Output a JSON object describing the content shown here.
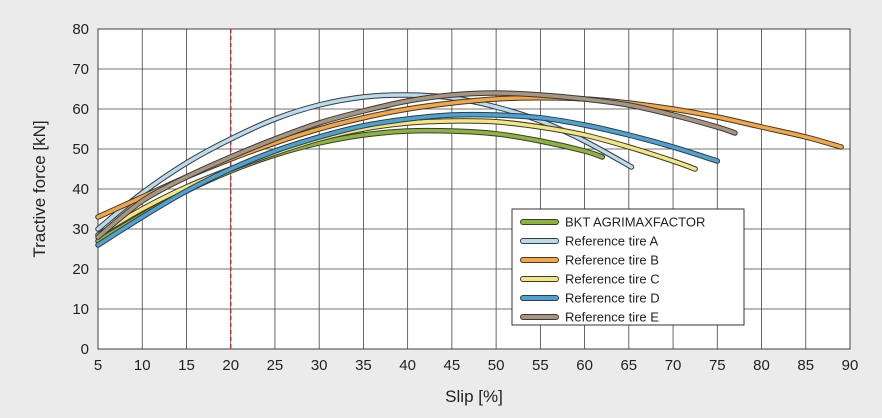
{
  "chart_data": {
    "type": "line",
    "title": "",
    "xlabel": "Slip [%]",
    "ylabel": "Tractive force [kN]",
    "xlim": [
      5,
      90
    ],
    "ylim": [
      0,
      80
    ],
    "xticks": [
      5,
      10,
      15,
      20,
      25,
      30,
      35,
      40,
      45,
      50,
      55,
      60,
      65,
      70,
      75,
      80,
      85,
      90
    ],
    "yticks": [
      0,
      10,
      20,
      30,
      40,
      50,
      60,
      70,
      80
    ],
    "grid": true,
    "legend_position": "bottom-right",
    "reference_line": {
      "x": 20,
      "color": "#d32f2f",
      "style": "dashed"
    },
    "series": [
      {
        "name": "BKT AGRIMAXFACTOR",
        "color": "#8cb43c",
        "x": [
          5,
          10,
          15,
          20,
          25,
          30,
          35,
          40,
          45,
          50,
          55,
          60,
          62
        ],
        "y": [
          27,
          33.5,
          39.5,
          44.5,
          48.5,
          51.5,
          53.5,
          54.5,
          54.5,
          53.8,
          52,
          49.5,
          48
        ]
      },
      {
        "name": "Reference tire A",
        "color": "#b8dcee",
        "x": [
          5,
          10,
          15,
          20,
          25,
          30,
          35,
          40,
          45,
          50,
          55,
          60,
          65.3
        ],
        "y": [
          30,
          39,
          46.5,
          52.5,
          57.5,
          61,
          63,
          63.5,
          62.8,
          60.5,
          57,
          52,
          45.5
        ]
      },
      {
        "name": "Reference tire B",
        "color": "#f4a640",
        "x": [
          5,
          10,
          15,
          20,
          25,
          30,
          35,
          40,
          45,
          50,
          55,
          60,
          65,
          70,
          75,
          80,
          85,
          89
        ],
        "y": [
          33,
          38,
          43,
          47.5,
          51.5,
          55,
          57.8,
          60,
          61.5,
          62.5,
          62.8,
          62.5,
          61.5,
          60,
          58,
          55.5,
          53,
          50.5
        ]
      },
      {
        "name": "Reference tire C",
        "color": "#f3e67a",
        "x": [
          5,
          10,
          15,
          20,
          25,
          30,
          35,
          40,
          45,
          50,
          55,
          60,
          65,
          70,
          72.5
        ],
        "y": [
          28.5,
          35,
          40.5,
          45,
          49,
          52.5,
          55,
          56.5,
          57,
          56.8,
          55.5,
          53.5,
          50.5,
          47,
          45
        ]
      },
      {
        "name": "Reference tire D",
        "color": "#4aa3d6",
        "x": [
          5,
          10,
          15,
          20,
          25,
          30,
          35,
          40,
          45,
          50,
          55,
          60,
          65,
          70,
          75
        ],
        "y": [
          26,
          33,
          39.5,
          45,
          49.5,
          53,
          55.8,
          57.5,
          58.5,
          58.5,
          57.8,
          56,
          53.5,
          50.5,
          47
        ]
      },
      {
        "name": "Reference tire E",
        "color": "#a89580",
        "x": [
          5,
          10,
          15,
          20,
          25,
          30,
          35,
          40,
          45,
          50,
          55,
          60,
          65,
          70,
          75,
          77
        ],
        "y": [
          28,
          37,
          43,
          48,
          52.5,
          56.5,
          59.5,
          62,
          63.5,
          64,
          63.5,
          62.5,
          61,
          58.5,
          55.5,
          54
        ]
      }
    ]
  }
}
